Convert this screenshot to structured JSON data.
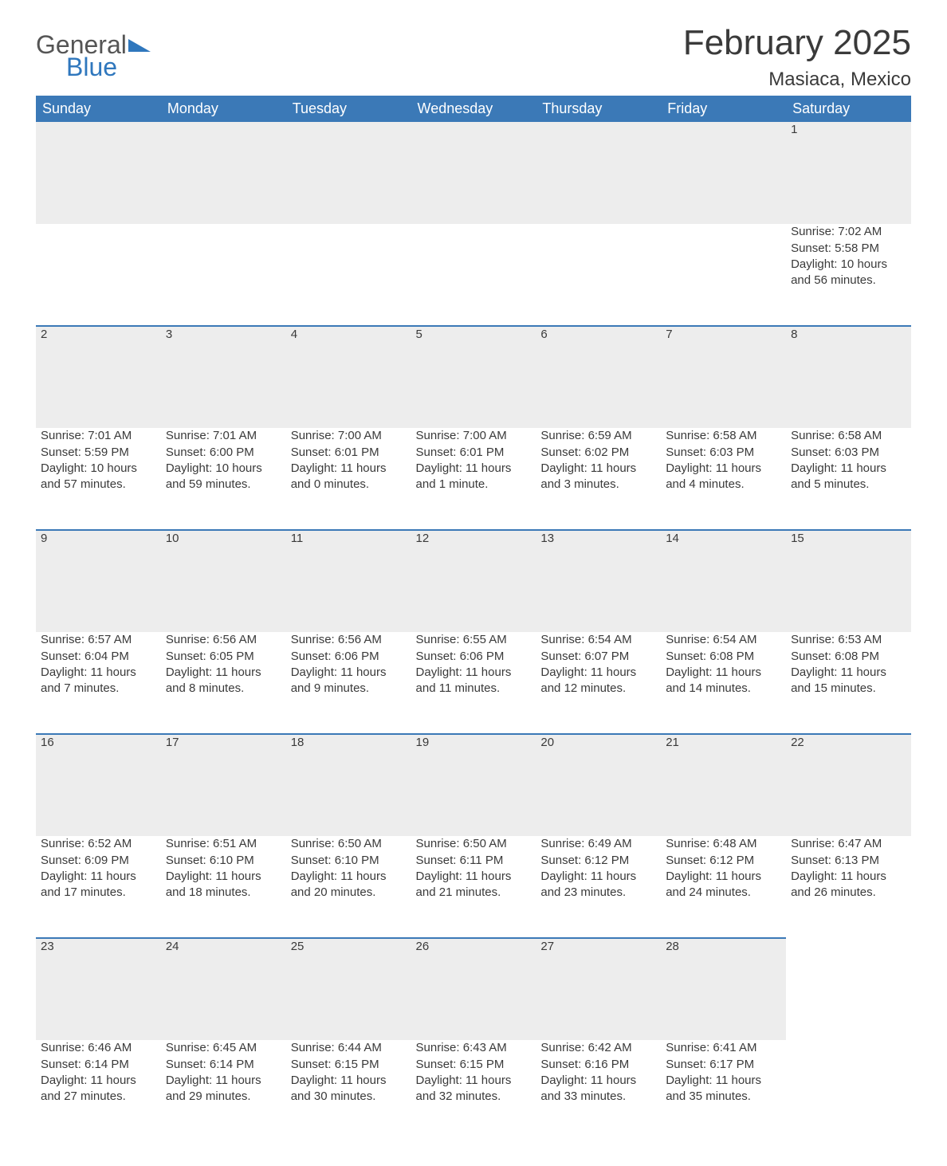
{
  "brand": {
    "word1": "General",
    "word2": "Blue",
    "flag_color": "#2f77bd"
  },
  "title": "February 2025",
  "location": "Masiaca, Mexico",
  "colors": {
    "header_bg": "#3b79b7",
    "header_text": "#ffffff",
    "daynum_bg": "#ededed",
    "row_border": "#3b79b7",
    "body_text": "#3a3a3a",
    "page_bg": "#ffffff"
  },
  "font_family": "Arial, Helvetica, sans-serif",
  "dow": [
    "Sunday",
    "Monday",
    "Tuesday",
    "Wednesday",
    "Thursday",
    "Friday",
    "Saturday"
  ],
  "weeks": [
    [
      null,
      null,
      null,
      null,
      null,
      null,
      {
        "n": "1",
        "sunrise": "Sunrise: 7:02 AM",
        "sunset": "Sunset: 5:58 PM",
        "day1": "Daylight: 10 hours",
        "day2": "and 56 minutes."
      }
    ],
    [
      {
        "n": "2",
        "sunrise": "Sunrise: 7:01 AM",
        "sunset": "Sunset: 5:59 PM",
        "day1": "Daylight: 10 hours",
        "day2": "and 57 minutes."
      },
      {
        "n": "3",
        "sunrise": "Sunrise: 7:01 AM",
        "sunset": "Sunset: 6:00 PM",
        "day1": "Daylight: 10 hours",
        "day2": "and 59 minutes."
      },
      {
        "n": "4",
        "sunrise": "Sunrise: 7:00 AM",
        "sunset": "Sunset: 6:01 PM",
        "day1": "Daylight: 11 hours",
        "day2": "and 0 minutes."
      },
      {
        "n": "5",
        "sunrise": "Sunrise: 7:00 AM",
        "sunset": "Sunset: 6:01 PM",
        "day1": "Daylight: 11 hours",
        "day2": "and 1 minute."
      },
      {
        "n": "6",
        "sunrise": "Sunrise: 6:59 AM",
        "sunset": "Sunset: 6:02 PM",
        "day1": "Daylight: 11 hours",
        "day2": "and 3 minutes."
      },
      {
        "n": "7",
        "sunrise": "Sunrise: 6:58 AM",
        "sunset": "Sunset: 6:03 PM",
        "day1": "Daylight: 11 hours",
        "day2": "and 4 minutes."
      },
      {
        "n": "8",
        "sunrise": "Sunrise: 6:58 AM",
        "sunset": "Sunset: 6:03 PM",
        "day1": "Daylight: 11 hours",
        "day2": "and 5 minutes."
      }
    ],
    [
      {
        "n": "9",
        "sunrise": "Sunrise: 6:57 AM",
        "sunset": "Sunset: 6:04 PM",
        "day1": "Daylight: 11 hours",
        "day2": "and 7 minutes."
      },
      {
        "n": "10",
        "sunrise": "Sunrise: 6:56 AM",
        "sunset": "Sunset: 6:05 PM",
        "day1": "Daylight: 11 hours",
        "day2": "and 8 minutes."
      },
      {
        "n": "11",
        "sunrise": "Sunrise: 6:56 AM",
        "sunset": "Sunset: 6:06 PM",
        "day1": "Daylight: 11 hours",
        "day2": "and 9 minutes."
      },
      {
        "n": "12",
        "sunrise": "Sunrise: 6:55 AM",
        "sunset": "Sunset: 6:06 PM",
        "day1": "Daylight: 11 hours",
        "day2": "and 11 minutes."
      },
      {
        "n": "13",
        "sunrise": "Sunrise: 6:54 AM",
        "sunset": "Sunset: 6:07 PM",
        "day1": "Daylight: 11 hours",
        "day2": "and 12 minutes."
      },
      {
        "n": "14",
        "sunrise": "Sunrise: 6:54 AM",
        "sunset": "Sunset: 6:08 PM",
        "day1": "Daylight: 11 hours",
        "day2": "and 14 minutes."
      },
      {
        "n": "15",
        "sunrise": "Sunrise: 6:53 AM",
        "sunset": "Sunset: 6:08 PM",
        "day1": "Daylight: 11 hours",
        "day2": "and 15 minutes."
      }
    ],
    [
      {
        "n": "16",
        "sunrise": "Sunrise: 6:52 AM",
        "sunset": "Sunset: 6:09 PM",
        "day1": "Daylight: 11 hours",
        "day2": "and 17 minutes."
      },
      {
        "n": "17",
        "sunrise": "Sunrise: 6:51 AM",
        "sunset": "Sunset: 6:10 PM",
        "day1": "Daylight: 11 hours",
        "day2": "and 18 minutes."
      },
      {
        "n": "18",
        "sunrise": "Sunrise: 6:50 AM",
        "sunset": "Sunset: 6:10 PM",
        "day1": "Daylight: 11 hours",
        "day2": "and 20 minutes."
      },
      {
        "n": "19",
        "sunrise": "Sunrise: 6:50 AM",
        "sunset": "Sunset: 6:11 PM",
        "day1": "Daylight: 11 hours",
        "day2": "and 21 minutes."
      },
      {
        "n": "20",
        "sunrise": "Sunrise: 6:49 AM",
        "sunset": "Sunset: 6:12 PM",
        "day1": "Daylight: 11 hours",
        "day2": "and 23 minutes."
      },
      {
        "n": "21",
        "sunrise": "Sunrise: 6:48 AM",
        "sunset": "Sunset: 6:12 PM",
        "day1": "Daylight: 11 hours",
        "day2": "and 24 minutes."
      },
      {
        "n": "22",
        "sunrise": "Sunrise: 6:47 AM",
        "sunset": "Sunset: 6:13 PM",
        "day1": "Daylight: 11 hours",
        "day2": "and 26 minutes."
      }
    ],
    [
      {
        "n": "23",
        "sunrise": "Sunrise: 6:46 AM",
        "sunset": "Sunset: 6:14 PM",
        "day1": "Daylight: 11 hours",
        "day2": "and 27 minutes."
      },
      {
        "n": "24",
        "sunrise": "Sunrise: 6:45 AM",
        "sunset": "Sunset: 6:14 PM",
        "day1": "Daylight: 11 hours",
        "day2": "and 29 minutes."
      },
      {
        "n": "25",
        "sunrise": "Sunrise: 6:44 AM",
        "sunset": "Sunset: 6:15 PM",
        "day1": "Daylight: 11 hours",
        "day2": "and 30 minutes."
      },
      {
        "n": "26",
        "sunrise": "Sunrise: 6:43 AM",
        "sunset": "Sunset: 6:15 PM",
        "day1": "Daylight: 11 hours",
        "day2": "and 32 minutes."
      },
      {
        "n": "27",
        "sunrise": "Sunrise: 6:42 AM",
        "sunset": "Sunset: 6:16 PM",
        "day1": "Daylight: 11 hours",
        "day2": "and 33 minutes."
      },
      {
        "n": "28",
        "sunrise": "Sunrise: 6:41 AM",
        "sunset": "Sunset: 6:17 PM",
        "day1": "Daylight: 11 hours",
        "day2": "and 35 minutes."
      },
      null
    ]
  ]
}
